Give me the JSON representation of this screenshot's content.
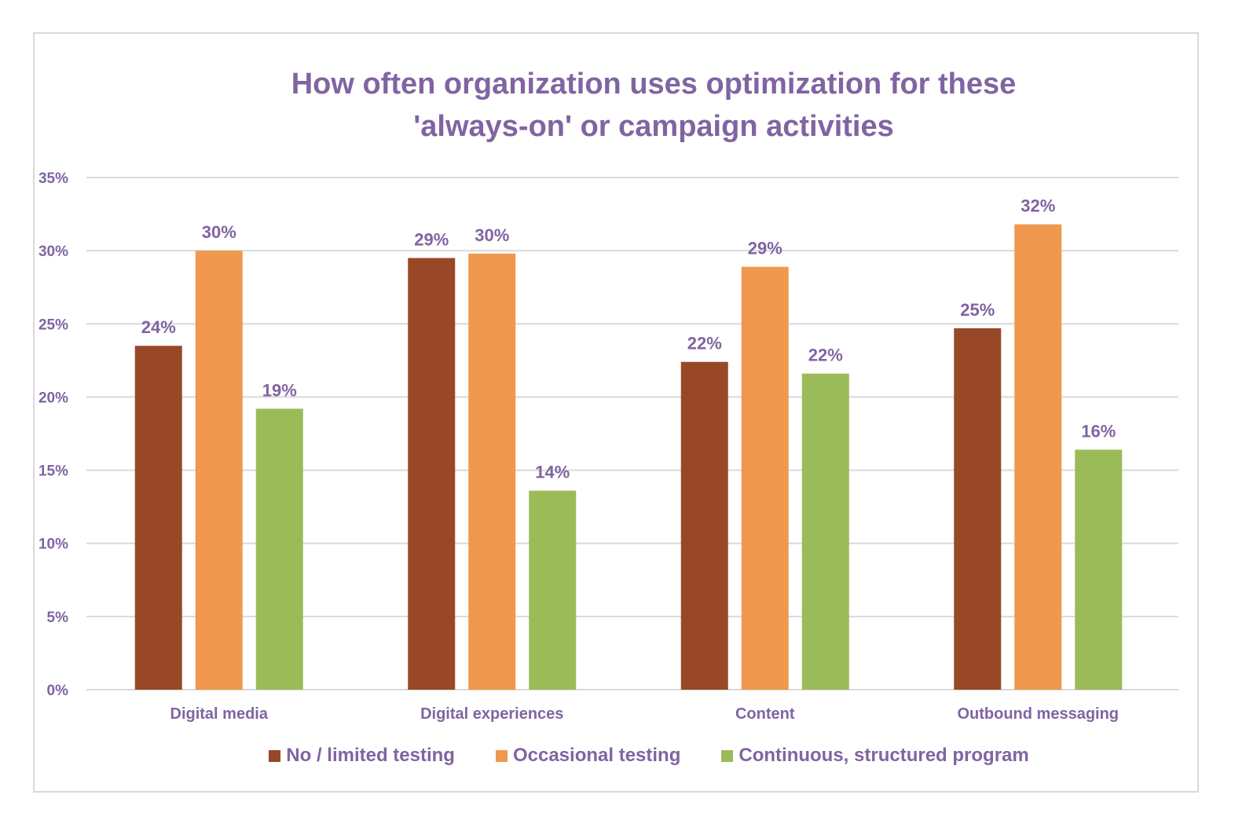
{
  "chart_data": {
    "type": "bar",
    "title_lines": [
      "How often organization uses optimization for these",
      "'always-on' or campaign activities"
    ],
    "xlabel": "",
    "ylabel": "",
    "ylim": [
      0,
      35
    ],
    "yticks": [
      0,
      5,
      10,
      15,
      20,
      25,
      30,
      35
    ],
    "ytick_labels": [
      "0%",
      "5%",
      "10%",
      "15%",
      "20%",
      "25%",
      "30%",
      "35%"
    ],
    "grid": true,
    "legend_position": "bottom",
    "categories": [
      "Digital media",
      "Digital experiences",
      "Content",
      "Outbound messaging"
    ],
    "series": [
      {
        "name": "No / limited testing",
        "color": "#984826",
        "values": [
          23.5,
          29.5,
          22.4,
          24.7
        ],
        "labels": [
          "24%",
          "29%",
          "22%",
          "25%"
        ]
      },
      {
        "name": "Occasional testing",
        "color": "#f0984d",
        "values": [
          30.0,
          29.8,
          28.9,
          31.8
        ],
        "labels": [
          "30%",
          "30%",
          "29%",
          "32%"
        ]
      },
      {
        "name": "Continuous, structured program",
        "color": "#9bbb59",
        "values": [
          19.2,
          13.6,
          21.6,
          16.4
        ],
        "labels": [
          "19%",
          "14%",
          "22%",
          "16%"
        ]
      }
    ],
    "colors": {
      "text": "#8064a2",
      "grid": "#d9d9d9"
    }
  }
}
